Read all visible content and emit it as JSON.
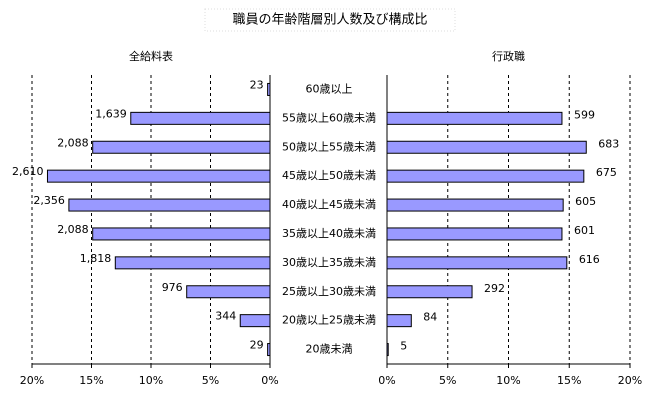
{
  "chart_data": {
    "type": "butterfly",
    "title": "職員の年齢階層別人数及び構成比",
    "categories": [
      "60歳以上",
      "55歳以上60歳未満",
      "50歳以上55歳未満",
      "45歳以上50歳未満",
      "40歳以上45歳未満",
      "35歳以上40歳未満",
      "30歳以上35歳未満",
      "25歳以上30歳未満",
      "20歳以上25歳未満",
      "20歳未満"
    ],
    "series": [
      {
        "name": "全給料表",
        "side": "left",
        "color": "#9999ff",
        "values": [
          0.2,
          11.7,
          14.9,
          18.7,
          16.9,
          14.9,
          13.0,
          7.0,
          2.5,
          0.2
        ],
        "counts": [
          23,
          1639,
          2088,
          2610,
          2356,
          2088,
          1818,
          976,
          344,
          29
        ],
        "count_labels": [
          "23",
          "1,639",
          "2,088",
          "2,610",
          "2,356",
          "2,088",
          "1,818",
          "976",
          "344",
          "29"
        ]
      },
      {
        "name": "行政職",
        "side": "right",
        "color": "#9999ff",
        "values": [
          null,
          14.4,
          16.4,
          16.2,
          14.5,
          14.4,
          14.8,
          7.0,
          2.0,
          0.1
        ],
        "counts": [
          null,
          599,
          683,
          675,
          605,
          601,
          616,
          292,
          84,
          5
        ],
        "count_labels": [
          null,
          "599",
          "683",
          "675",
          "605",
          "601",
          "616",
          "292",
          "84",
          "5"
        ]
      }
    ],
    "xlim": [
      0,
      20
    ],
    "xticks": [
      {
        "value": 0,
        "label": "0%"
      },
      {
        "value": 5,
        "label": "5%"
      },
      {
        "value": 10,
        "label": "10%"
      },
      {
        "value": 15,
        "label": "15%"
      },
      {
        "value": 20,
        "label": "20%"
      }
    ],
    "grid": true
  }
}
